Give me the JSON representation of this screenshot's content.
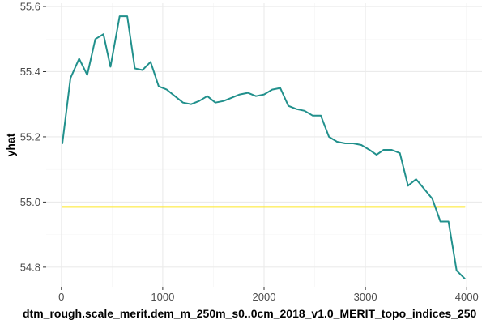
{
  "chart_data": {
    "type": "line",
    "title": "",
    "xlabel": "dtm_rough.scale_merit.dem_m_250m_s0..0cm_2018_v1.0_MERIT_topo_indices_250",
    "ylabel": "yhat",
    "xlim": [
      -150,
      4150
    ],
    "ylim": [
      54.74,
      55.61
    ],
    "x_ticks": [
      0,
      1000,
      2000,
      3000,
      4000
    ],
    "x_tick_labels": [
      "0",
      "1000",
      "2000",
      "3000",
      "4000"
    ],
    "y_ticks": [
      54.8,
      55.0,
      55.2,
      55.4,
      55.6
    ],
    "y_tick_labels": [
      "54.8",
      "55.0",
      "55.2",
      "55.4",
      "55.6"
    ],
    "grid": true,
    "legend": "none",
    "series": [
      {
        "color": "#21908C",
        "x": [
          10,
          90,
          175,
          255,
          335,
          415,
          485,
          575,
          650,
          725,
          800,
          880,
          960,
          1040,
          1120,
          1200,
          1280,
          1360,
          1440,
          1520,
          1600,
          1680,
          1760,
          1840,
          1920,
          2000,
          2080,
          2160,
          2240,
          2320,
          2400,
          2480,
          2560,
          2640,
          2720,
          2800,
          2880,
          2960,
          3040,
          3110,
          3180,
          3260,
          3340,
          3420,
          3500,
          3580,
          3660,
          3740,
          3820,
          3900,
          3980
        ],
        "y": [
          55.18,
          55.38,
          55.44,
          55.39,
          55.5,
          55.515,
          55.415,
          55.57,
          55.57,
          55.41,
          55.405,
          55.43,
          55.355,
          55.345,
          55.325,
          55.305,
          55.3,
          55.31,
          55.325,
          55.305,
          55.31,
          55.32,
          55.33,
          55.335,
          55.325,
          55.33,
          55.345,
          55.35,
          55.295,
          55.285,
          55.28,
          55.265,
          55.265,
          55.2,
          55.185,
          55.18,
          55.18,
          55.175,
          55.16,
          55.145,
          55.16,
          55.16,
          55.15,
          55.05,
          55.07,
          55.04,
          55.01,
          54.94,
          54.94,
          54.79,
          54.765
        ]
      },
      {
        "color": "#FDE725",
        "x": [
          10,
          3980
        ],
        "y": [
          54.985,
          54.985
        ]
      }
    ]
  }
}
